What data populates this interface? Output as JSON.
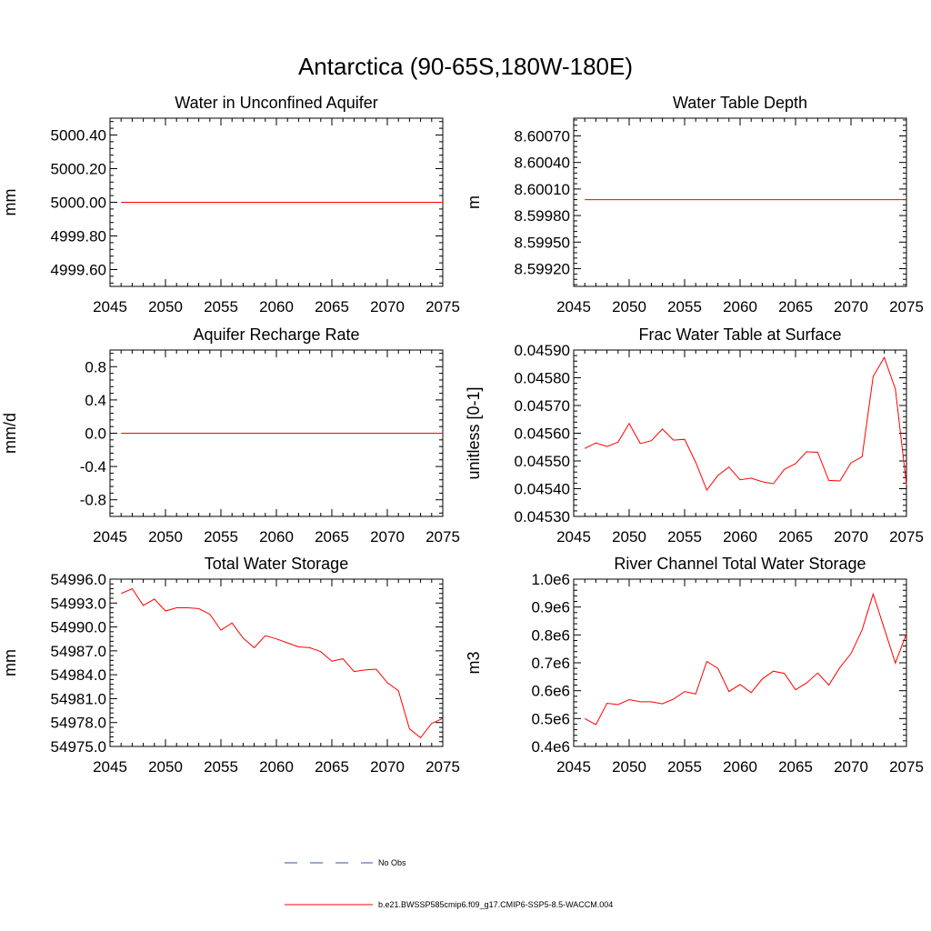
{
  "figure": {
    "title": "Antarctica (90-65S,180W-180E)",
    "line_color": "#ff0000",
    "obs_color": "#3b4ba8"
  },
  "legend": {
    "obs_label": "No Obs",
    "model_label": "b.e21.BWSSP585cmip6.f09_g17.CMIP6-SSP5-8.5-WACCM.004"
  },
  "chart_data": [
    {
      "type": "line",
      "title": "Water in Unconfined Aquifer",
      "xlabel": "",
      "ylabel": "mm",
      "xlim": [
        2045,
        2075
      ],
      "ylim": [
        4999.5,
        5000.5
      ],
      "xticks": [
        2045,
        2050,
        2055,
        2060,
        2065,
        2070,
        2075
      ],
      "yticks": [
        4999.6,
        4999.8,
        5000.0,
        5000.2,
        5000.4
      ],
      "ytick_labels": [
        "4999.60",
        "4999.80",
        "5000.00",
        "5000.20",
        "5000.40"
      ],
      "series": [
        {
          "name": "b.e21.BWSSP585cmip6.f09_g17.CMIP6-SSP5-8.5-WACCM.004",
          "x": [
            2046,
            2075
          ],
          "y": [
            5000.0,
            5000.0
          ]
        }
      ]
    },
    {
      "type": "line",
      "title": "Water Table Depth",
      "xlabel": "",
      "ylabel": "m",
      "xlim": [
        2045,
        2075
      ],
      "ylim": [
        8.599,
        8.6009
      ],
      "xticks": [
        2045,
        2050,
        2055,
        2060,
        2065,
        2070,
        2075
      ],
      "yticks": [
        8.5992,
        8.5995,
        8.5998,
        8.6001,
        8.6004,
        8.6007
      ],
      "ytick_labels": [
        "8.59920",
        "8.59950",
        "8.59980",
        "8.60010",
        "8.60040",
        "8.60070"
      ],
      "series": [
        {
          "name": "b.e21.BWSSP585cmip6.f09_g17.CMIP6-SSP5-8.5-WACCM.004",
          "x": [
            2046,
            2075
          ],
          "y": [
            8.59998,
            8.59998
          ]
        }
      ]
    },
    {
      "type": "line",
      "title": "Aquifer Recharge Rate",
      "xlabel": "",
      "ylabel": "mm/d",
      "xlim": [
        2045,
        2075
      ],
      "ylim": [
        -1.0,
        1.0
      ],
      "xticks": [
        2045,
        2050,
        2055,
        2060,
        2065,
        2070,
        2075
      ],
      "yticks": [
        -0.8,
        -0.4,
        0.0,
        0.4,
        0.8
      ],
      "ytick_labels": [
        "-0.8",
        "-0.4",
        "0.0",
        "0.4",
        "0.8"
      ],
      "series": [
        {
          "name": "b.e21.BWSSP585cmip6.f09_g17.CMIP6-SSP5-8.5-WACCM.004",
          "x": [
            2046,
            2075
          ],
          "y": [
            0.0,
            0.0
          ]
        }
      ]
    },
    {
      "type": "line",
      "title": "Frac Water Table at Surface",
      "xlabel": "",
      "ylabel": "unitless [0-1]",
      "xlim": [
        2045,
        2075
      ],
      "ylim": [
        0.0453,
        0.0459
      ],
      "xticks": [
        2045,
        2050,
        2055,
        2060,
        2065,
        2070,
        2075
      ],
      "yticks": [
        0.0453,
        0.0454,
        0.0455,
        0.0456,
        0.0457,
        0.0458,
        0.0459
      ],
      "ytick_labels": [
        "0.04530",
        "0.04540",
        "0.04550",
        "0.04560",
        "0.04570",
        "0.04580",
        "0.04590"
      ],
      "series": [
        {
          "name": "b.e21.BWSSP585cmip6.f09_g17.CMIP6-SSP5-8.5-WACCM.004",
          "x": [
            2046,
            2047,
            2048,
            2049,
            2050,
            2051,
            2052,
            2053,
            2054,
            2055,
            2056,
            2057,
            2058,
            2059,
            2060,
            2061,
            2062,
            2063,
            2064,
            2065,
            2066,
            2067,
            2068,
            2069,
            2070,
            2071,
            2072,
            2073,
            2074,
            2075
          ],
          "y": [
            0.045545,
            0.045565,
            0.045552,
            0.045568,
            0.045635,
            0.045563,
            0.045573,
            0.045615,
            0.045575,
            0.045578,
            0.045495,
            0.045395,
            0.045448,
            0.045478,
            0.045432,
            0.045438,
            0.045425,
            0.045418,
            0.04547,
            0.04549,
            0.045533,
            0.045531,
            0.04543,
            0.045428,
            0.045493,
            0.045515,
            0.045805,
            0.045873,
            0.04576,
            0.045415
          ]
        }
      ]
    },
    {
      "type": "line",
      "title": "Total Water Storage",
      "xlabel": "",
      "ylabel": "mm",
      "xlim": [
        2045,
        2075
      ],
      "ylim": [
        54975.0,
        54996.0
      ],
      "xticks": [
        2045,
        2050,
        2055,
        2060,
        2065,
        2070,
        2075
      ],
      "yticks": [
        54975.0,
        54978.0,
        54981.0,
        54984.0,
        54987.0,
        54990.0,
        54993.0,
        54996.0
      ],
      "ytick_labels": [
        "54975.0",
        "54978.0",
        "54981.0",
        "54984.0",
        "54987.0",
        "54990.0",
        "54993.0",
        "54996.0"
      ],
      "series": [
        {
          "name": "b.e21.BWSSP585cmip6.f09_g17.CMIP6-SSP5-8.5-WACCM.004",
          "x": [
            2046,
            2047,
            2048,
            2049,
            2050,
            2051,
            2052,
            2053,
            2054,
            2055,
            2056,
            2057,
            2058,
            2059,
            2060,
            2061,
            2062,
            2063,
            2064,
            2065,
            2066,
            2067,
            2068,
            2069,
            2070,
            2071,
            2072,
            2073,
            2074,
            2075
          ],
          "y": [
            54994.2,
            54994.8,
            54992.7,
            54993.5,
            54992.0,
            54992.4,
            54992.4,
            54992.3,
            54991.6,
            54989.6,
            54990.5,
            54988.6,
            54987.4,
            54988.9,
            54988.5,
            54988.0,
            54987.5,
            54987.4,
            54986.9,
            54985.7,
            54986.0,
            54984.4,
            54984.6,
            54984.7,
            54983.0,
            54982.0,
            54977.2,
            54976.1,
            54977.9,
            54978.5
          ]
        }
      ]
    },
    {
      "type": "line",
      "title": "River Channel Total Water Storage",
      "xlabel": "",
      "ylabel": "m3",
      "xlim": [
        2045,
        2075
      ],
      "ylim": [
        400000,
        1000000
      ],
      "xticks": [
        2045,
        2050,
        2055,
        2060,
        2065,
        2070,
        2075
      ],
      "yticks": [
        400000,
        500000,
        600000,
        700000,
        800000,
        900000,
        1000000
      ],
      "ytick_labels": [
        "0.4e6",
        "0.5e6",
        "0.6e6",
        "0.7e6",
        "0.8e6",
        "0.9e6",
        "1.0e6"
      ],
      "series": [
        {
          "name": "b.e21.BWSSP585cmip6.f09_g17.CMIP6-SSP5-8.5-WACCM.004",
          "x": [
            2046,
            2047,
            2048,
            2049,
            2050,
            2051,
            2052,
            2053,
            2054,
            2055,
            2056,
            2057,
            2058,
            2059,
            2060,
            2061,
            2062,
            2063,
            2064,
            2065,
            2066,
            2067,
            2068,
            2069,
            2070,
            2071,
            2072,
            2073,
            2074,
            2075
          ],
          "y": [
            500000,
            478000,
            555000,
            550000,
            568000,
            560000,
            560000,
            553000,
            570000,
            597000,
            588000,
            705000,
            680000,
            597000,
            622000,
            593000,
            642000,
            670000,
            662000,
            603000,
            628000,
            663000,
            620000,
            683000,
            733000,
            818000,
            947000,
            823000,
            699000,
            805000
          ]
        }
      ]
    }
  ]
}
